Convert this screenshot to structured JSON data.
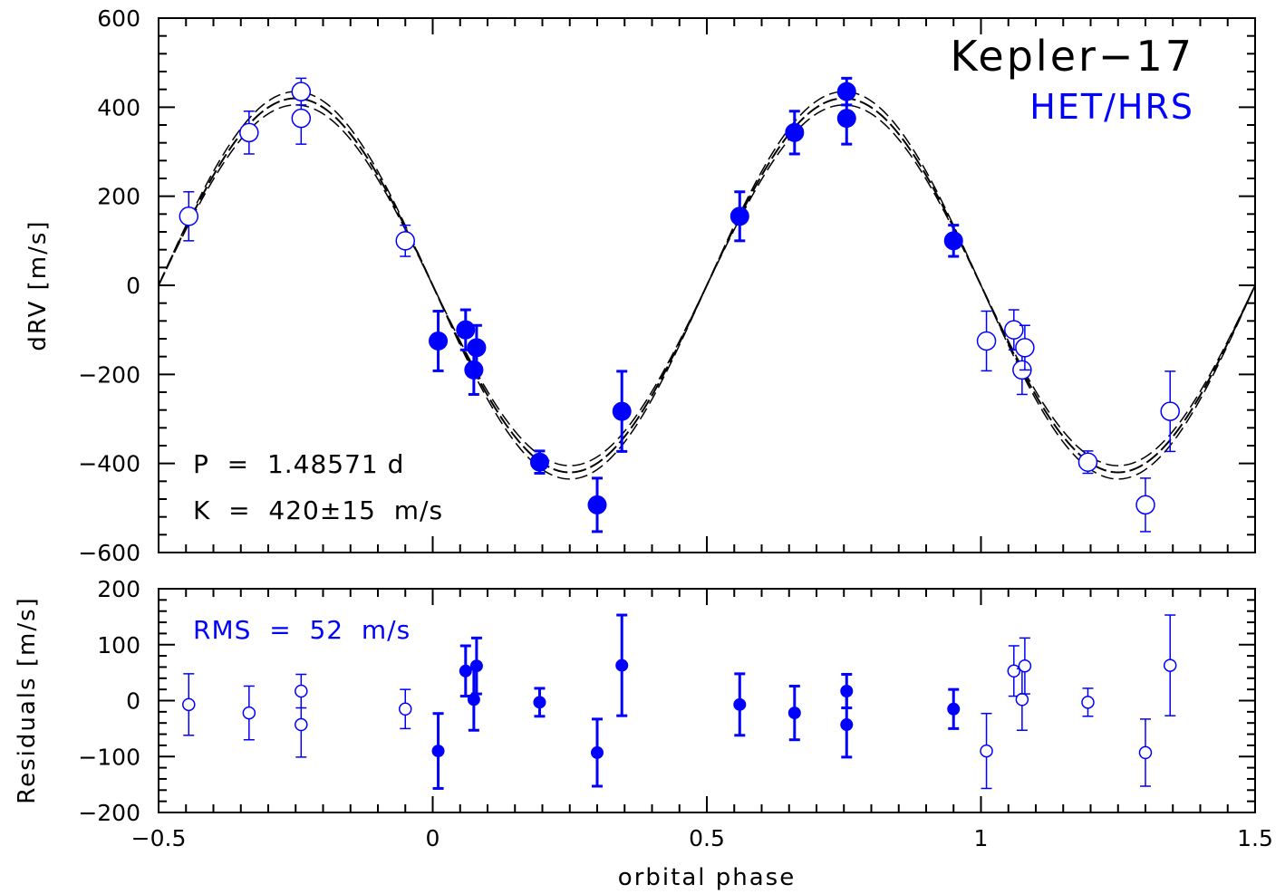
{
  "chart_data": [
    {
      "type": "scatter",
      "panel": "radial-velocity",
      "title": "Kepler−17",
      "subtitle": "HET/HRS",
      "xlabel": "orbital phase",
      "ylabel": "dRV [m/s]",
      "xlim": [
        -0.5,
        1.5
      ],
      "ylim": [
        -600,
        600
      ],
      "xticks": [
        -0.5,
        0,
        0.5,
        1,
        1.5
      ],
      "xtick_labels": [
        "−0.5",
        "0",
        "0.5",
        "1",
        "1.5"
      ],
      "yticks": [
        -600,
        -400,
        -200,
        0,
        200,
        400,
        600
      ],
      "ytick_labels": [
        "−600",
        "−400",
        "−200",
        "0",
        "200",
        "400",
        "600"
      ],
      "annotations": [
        {
          "text": "P  =  1.48571 d"
        },
        {
          "text": "K  =  420±15  m/s"
        }
      ],
      "model": {
        "type": "sine",
        "K": 420,
        "band": [
          405,
          435
        ],
        "zero_phase": 0
      },
      "series": [
        {
          "style": "filled-circle",
          "x": [
            0.01,
            0.06,
            0.075,
            0.08,
            0.195,
            0.3,
            0.345,
            0.56,
            0.66,
            0.755,
            0.755,
            0.95
          ],
          "y": [
            -125,
            -100,
            -190,
            -140,
            -397,
            -493,
            -283,
            155,
            343,
            375,
            435,
            100
          ],
          "yerr": [
            67,
            45,
            55,
            50,
            25,
            60,
            90,
            55,
            48,
            58,
            30,
            35
          ]
        },
        {
          "style": "open-circle",
          "x": [
            -0.445,
            -0.335,
            -0.24,
            -0.24,
            -0.05,
            1.01,
            1.06,
            1.075,
            1.08,
            1.195,
            1.3,
            1.345
          ],
          "y": [
            155,
            343,
            375,
            435,
            100,
            -125,
            -100,
            -190,
            -140,
            -397,
            -493,
            -283
          ],
          "yerr": [
            55,
            48,
            58,
            30,
            35,
            67,
            45,
            55,
            50,
            25,
            60,
            90
          ]
        }
      ],
      "colors": {
        "points": "#0000ff",
        "model": "#000000",
        "axes": "#000000"
      }
    },
    {
      "type": "scatter",
      "panel": "residuals",
      "xlabel": "orbital phase",
      "ylabel": "Residuals [m/s]",
      "xlim": [
        -0.5,
        1.5
      ],
      "ylim": [
        -200,
        200
      ],
      "yticks": [
        -200,
        -100,
        0,
        100,
        200
      ],
      "ytick_labels": [
        "−200",
        "−100",
        "0",
        "100",
        "200"
      ],
      "annotations": [
        {
          "text": "RMS  =  52  m/s"
        }
      ],
      "series": [
        {
          "style": "filled-circle",
          "x": [
            0.01,
            0.06,
            0.075,
            0.08,
            0.195,
            0.3,
            0.345,
            0.56,
            0.66,
            0.755,
            0.755,
            0.95
          ],
          "y": [
            -90,
            53,
            2,
            62,
            -3,
            -93,
            63,
            -7,
            -22,
            -43,
            17,
            -15
          ],
          "yerr": [
            67,
            45,
            55,
            50,
            25,
            60,
            90,
            55,
            48,
            58,
            30,
            35
          ]
        },
        {
          "style": "open-circle",
          "x": [
            -0.445,
            -0.335,
            -0.24,
            -0.24,
            -0.05,
            1.01,
            1.06,
            1.075,
            1.08,
            1.195,
            1.3,
            1.345
          ],
          "y": [
            -7,
            -22,
            -43,
            17,
            -15,
            -90,
            53,
            2,
            62,
            -3,
            -93,
            63
          ],
          "yerr": [
            55,
            48,
            58,
            30,
            35,
            67,
            45,
            55,
            50,
            25,
            60,
            90
          ]
        }
      ],
      "colors": {
        "points": "#0000ff",
        "axes": "#000000"
      }
    }
  ]
}
